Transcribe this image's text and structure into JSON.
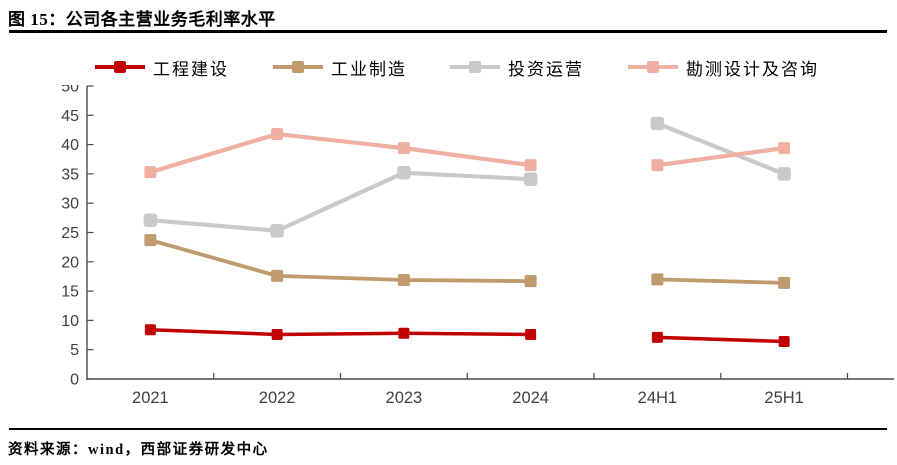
{
  "title": "图 15：公司各主营业务毛利率水平",
  "source": "资料来源：wind，西部证券研发中心",
  "colors": {
    "series_red": "#C00000",
    "series_tan": "#BE9A6D",
    "series_gray": "#C9C9C9",
    "series_pink": "#EFB0A2",
    "axis": "#4a4a4a",
    "tick_label": "#3f3f3f",
    "rule": "#000000"
  },
  "chart_data": {
    "type": "line",
    "title": "公司各主营业务毛利率水平",
    "categories": [
      "2021",
      "2022",
      "2023",
      "2024",
      "24H1",
      "25H1"
    ],
    "series": [
      {
        "name": "工程建设",
        "color": "#C00000",
        "values": [
          8.4,
          7.6,
          7.8,
          7.6,
          7.1,
          6.4
        ]
      },
      {
        "name": "工业制造",
        "color": "#BE9A6D",
        "values": [
          23.7,
          17.6,
          16.9,
          16.7,
          17.0,
          16.4
        ]
      },
      {
        "name": "投资运营",
        "color": "#C9C9C9",
        "values": [
          27.1,
          25.3,
          35.2,
          34.1,
          43.6,
          35.0
        ]
      },
      {
        "name": "勘测设计及咨询",
        "color": "#EFB0A2",
        "values": [
          35.3,
          41.8,
          39.4,
          36.5,
          36.5,
          39.4
        ]
      }
    ],
    "segments": [
      [
        0,
        1,
        2,
        3
      ],
      [
        4,
        5
      ]
    ],
    "ylim": [
      0,
      50
    ],
    "ytick_step": 5,
    "xlabel": "",
    "ylabel": "",
    "grid": false,
    "legend_position": "top",
    "marker": "square"
  }
}
